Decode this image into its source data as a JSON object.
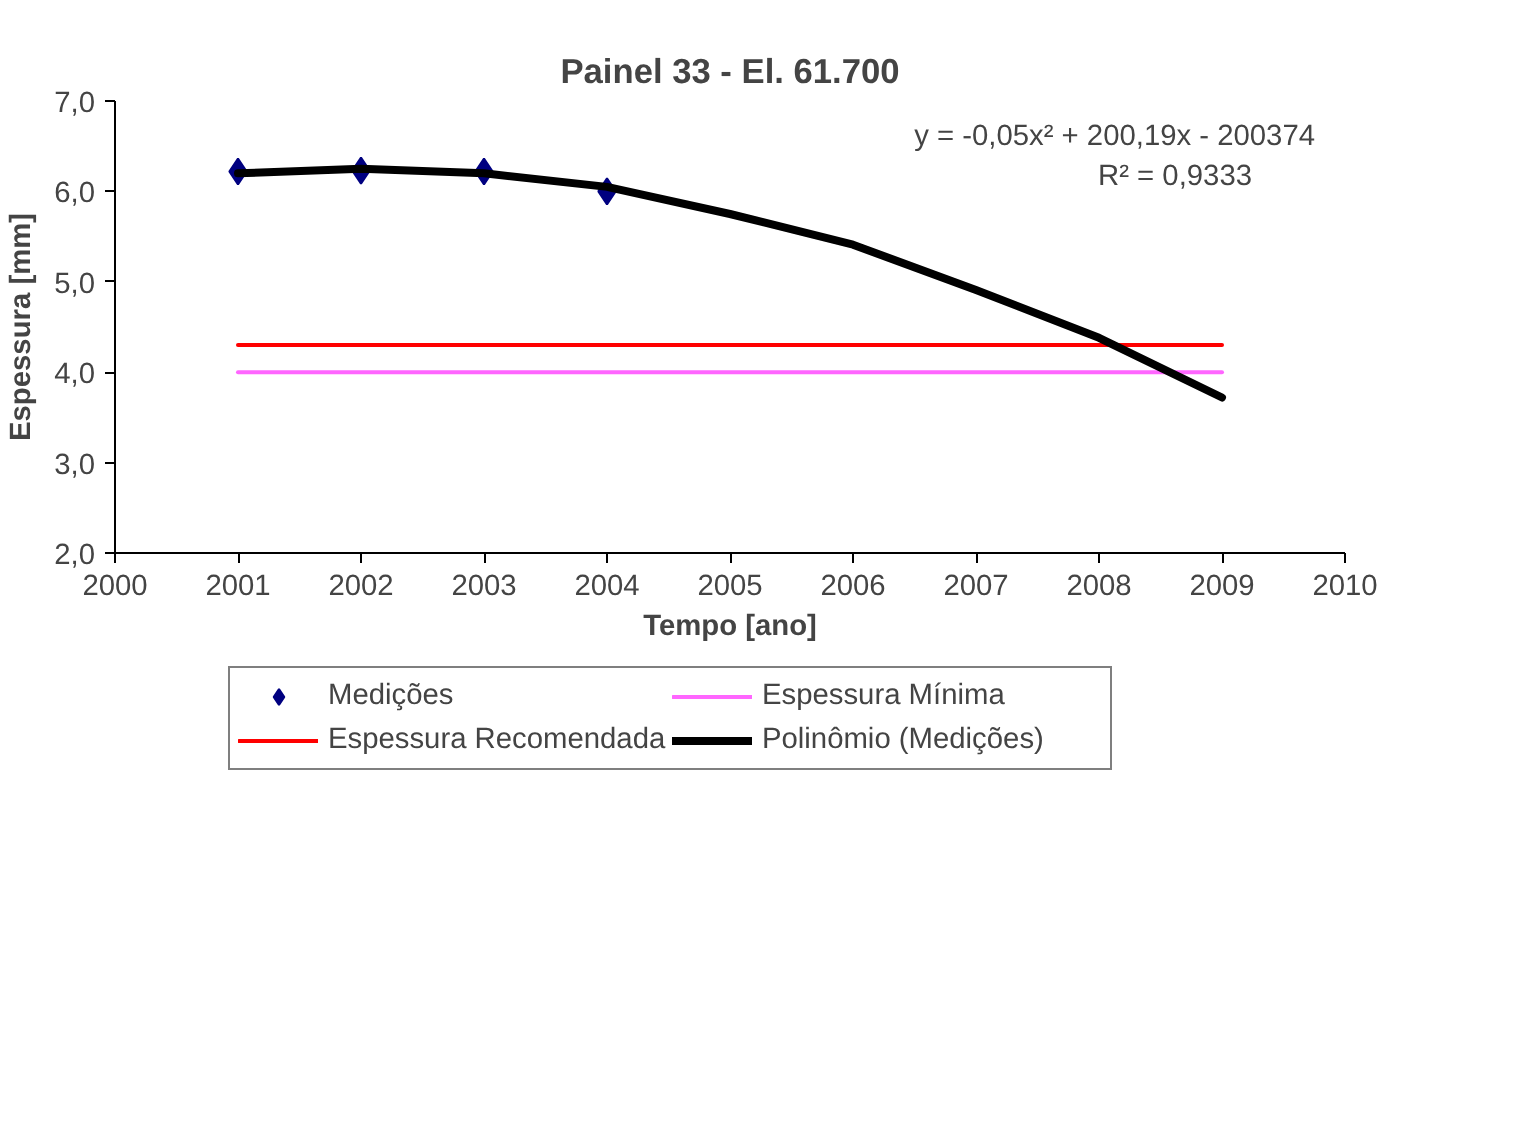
{
  "chart_data": {
    "type": "scatter",
    "title": "Painel 33 - El. 61.700",
    "xlabel": "Tempo [ano]",
    "ylabel": "Espessura [mm]",
    "xlim": [
      2000,
      2010
    ],
    "xticks": [
      2000,
      2001,
      2002,
      2003,
      2004,
      2005,
      2006,
      2007,
      2008,
      2009,
      2010
    ],
    "ylim": [
      2,
      7
    ],
    "yticks": [
      {
        "value": 2,
        "label": "2,0"
      },
      {
        "value": 3,
        "label": "3,0"
      },
      {
        "value": 4,
        "label": "4,0"
      },
      {
        "value": 5,
        "label": "5,0"
      },
      {
        "value": 6,
        "label": "6,0"
      },
      {
        "value": 7,
        "label": "7,0"
      }
    ],
    "grid": false,
    "legend": "bottom",
    "series": [
      {
        "name": "Medições",
        "marker": "diamond",
        "color": "#000080",
        "x": [
          2001,
          2002,
          2003,
          2004
        ],
        "values": [
          6.22,
          6.23,
          6.22,
          6.0
        ]
      },
      {
        "name": "Espessura Mínima",
        "type": "line",
        "color": "#ff66ff",
        "x": [
          2001,
          2009
        ],
        "values": [
          4.0,
          4.0
        ]
      },
      {
        "name": "Espessura Recomendada",
        "type": "line",
        "color": "#ff0000",
        "x": [
          2001,
          2009
        ],
        "values": [
          4.3,
          4.3
        ]
      },
      {
        "name": "Polinômio (Medições)",
        "type": "line",
        "color": "#000000",
        "x": [
          2001,
          2002,
          2003,
          2004,
          2005,
          2006,
          2007,
          2008,
          2009
        ],
        "values": [
          6.2,
          6.25,
          6.2,
          6.05,
          5.75,
          5.41,
          4.91,
          4.38,
          3.72
        ]
      }
    ],
    "annotations": [
      "y = -0,05x² + 200,19x - 200374",
      "R² = 0,9333"
    ]
  }
}
